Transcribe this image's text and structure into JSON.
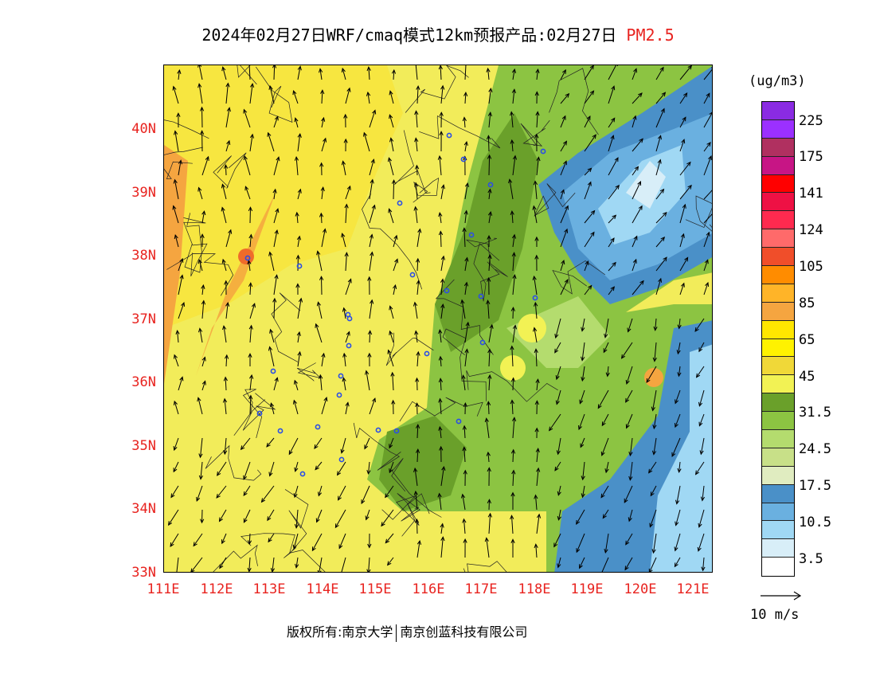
{
  "title": {
    "main": "2024年02月27日WRF/cmaq模式12km预报产品:02月27日",
    "pollutant": "PM2.5"
  },
  "axes": {
    "lat_labels": [
      "40N",
      "39N",
      "38N",
      "37N",
      "36N",
      "35N",
      "34N",
      "33N"
    ],
    "lon_labels": [
      "111E",
      "112E",
      "113E",
      "114E",
      "115E",
      "116E",
      "117E",
      "118E",
      "119E",
      "120E",
      "121E"
    ]
  },
  "colorbar": {
    "unit": "(ug/m3)",
    "colors": [
      "#8a2be2",
      "#9b30ff",
      "#b03060",
      "#c71585",
      "#ff0000",
      "#ee1144",
      "#ff2a4f",
      "#ff6a6a",
      "#f04e2a",
      "#ff8c00",
      "#ffb428",
      "#f5a540",
      "#ffe600",
      "#fff200",
      "#f0d838",
      "#f2f254",
      "#6aa02a",
      "#8cc442",
      "#b4dc6e",
      "#c8e088",
      "#e0ecc0",
      "#4a90c8",
      "#6ab0e0",
      "#a0d8f4",
      "#d8eef8",
      "#ffffff"
    ],
    "labels": [
      "225",
      "175",
      "141",
      "124",
      "105",
      "85",
      "65",
      "45",
      "31.5",
      "24.5",
      "17.5",
      "10.5",
      "3.5"
    ]
  },
  "wind_legend": {
    "label": "10 m/s"
  },
  "footer": {
    "copyright": "版权所有:南京大学",
    "company": "南京创蓝科技有限公司"
  }
}
